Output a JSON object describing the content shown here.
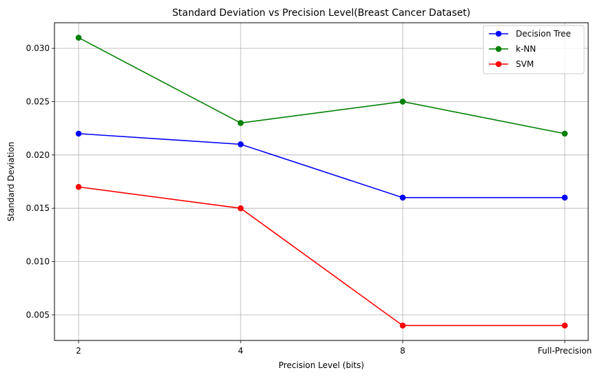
{
  "chart_data": {
    "type": "line",
    "title": "Standard Deviation vs Precision Level(Breast Cancer Dataset)",
    "xlabel": "Precision Level (bits)",
    "ylabel": "Standard Deviation",
    "categories": [
      "2",
      "4",
      "8",
      "Full-Precision"
    ],
    "y_ticks": [
      "0.005",
      "0.010",
      "0.015",
      "0.020",
      "0.025",
      "0.030"
    ],
    "ylim": [
      0.0026,
      0.0324
    ],
    "grid": true,
    "legend_position": "top-right",
    "series": [
      {
        "name": "Decision Tree",
        "color": "#0000ff",
        "marker": "circle",
        "values": [
          0.022,
          0.021,
          0.016,
          0.016
        ]
      },
      {
        "name": "k-NN",
        "color": "#008000",
        "marker": "circle",
        "values": [
          0.031,
          0.023,
          0.025,
          0.022
        ]
      },
      {
        "name": "SVM",
        "color": "#ff0000",
        "marker": "circle",
        "values": [
          0.017,
          0.015,
          0.004,
          0.004
        ]
      }
    ]
  }
}
